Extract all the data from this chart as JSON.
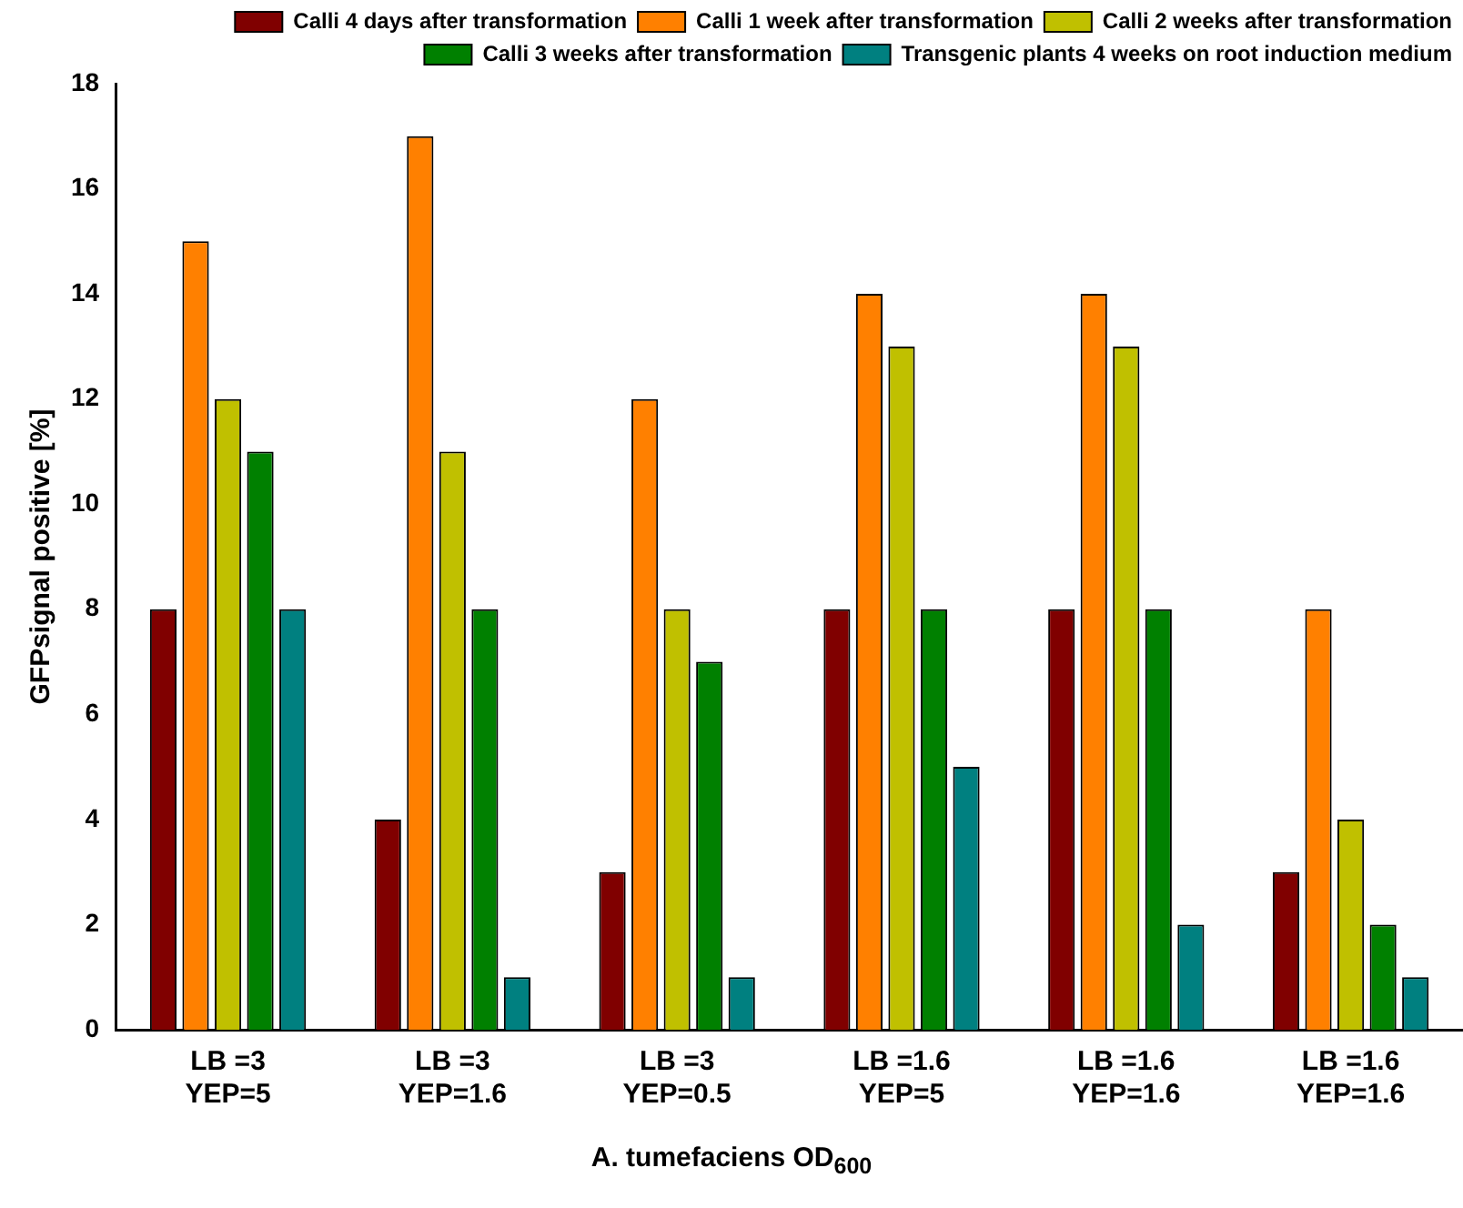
{
  "chart_data": {
    "type": "bar",
    "xlabel": "A. tumefaciens OD$_{600}$",
    "ylabel": "GFPsignal positive [%]",
    "categories": [
      "LB =3\nYEP=5",
      "LB =3\nYEP=1.6",
      "LB =3\nYEP=0.5",
      "LB =1.6\nYEP=5",
      "LB =1.6\nYEP=1.6",
      "LB =1.6\nYEP=1.6"
    ],
    "series": [
      {
        "name": "Calli 4 days after transformation",
        "color": "#800000",
        "values": [
          8,
          4,
          3,
          8,
          8,
          3
        ]
      },
      {
        "name": "Calli 1 week after transformation",
        "color": "#ff8000",
        "values": [
          15,
          17,
          12,
          14,
          14,
          8
        ]
      },
      {
        "name": "Calli 2 weeks after transformation",
        "color": "#c0c000",
        "values": [
          12,
          11,
          8,
          13,
          13,
          4
        ]
      },
      {
        "name": "Calli 3 weeks after transformation",
        "color": "#008000",
        "values": [
          11,
          8,
          7,
          8,
          8,
          2
        ]
      },
      {
        "name": "Transgenic plants 4 weeks on root induction medium",
        "color": "#008080",
        "values": [
          8,
          1,
          1,
          5,
          2,
          1
        ]
      }
    ],
    "ylim": [
      0,
      18
    ],
    "yticks": [
      0,
      2,
      4,
      6,
      8,
      10,
      12,
      14,
      16,
      18
    ],
    "grid": false,
    "legend": "top right"
  }
}
